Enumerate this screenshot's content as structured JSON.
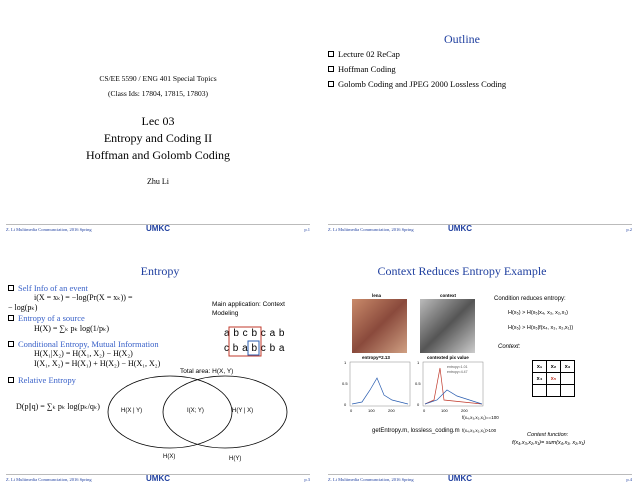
{
  "slides": [
    {
      "course": "CS/EE 5590 / ENG 401 Special Topics",
      "class_ids": "(Class Ids: 17804, 17815, 17803)",
      "lecture": "Lec 03",
      "title_line1": "Entropy and Coding II",
      "title_line2": "Hoffman and Golomb Coding",
      "author": "Zhu Li",
      "footer": {
        "text": "Z. Li Multimedia Communciation, 2016 Spring",
        "logo": "UMKC",
        "page": "p.1"
      }
    },
    {
      "title": "Outline",
      "bullets": [
        "Lecture 02 ReCap",
        "Hoffman Coding",
        "Golomb Coding and JPEG 2000 Lossless Coding"
      ],
      "footer": {
        "text": "Z. Li Multimedia Communciation, 2016 Spring",
        "logo": "UMKC",
        "page": "p.2"
      }
    },
    {
      "title": "Entropy",
      "bullets": [
        "Self Info of an event",
        "Entropy of a source",
        "Conditional Entropy, Mutual Information",
        "Relative Entropy"
      ],
      "formulas": [
        "i(X = xₖ) = −log(Pr(X = xₖ)) =",
        "− log(pₖ)",
        "H(X) = ∑ₖ pₖ log(1/pₖ)",
        "H(X₁|X₂) = H(X₁, X₂) − H(X₂)",
        "I(X₁, X₂) = H(X₁) + H(X₂) − H(X₁, X₂)",
        "D(p||q) = ∑ₖ pₖ log(pₖ/qₖ)"
      ],
      "note_line1": "Main application: Context",
      "note_line2": "Modeling",
      "sequence1": "a b c b c a b",
      "sequence2": "c b a b c b a",
      "venn": {
        "total": "Total area: H(X, Y)",
        "hx_given_y": "H(X | Y)",
        "mutual": "I(X; Y)",
        "hy_given_x": "H(Y | X)",
        "hx": "H(X)",
        "hy": "H(Y)"
      },
      "footer": {
        "text": "Z. Li Multimedia Communciation, 2016 Spring",
        "logo": "UMKC",
        "page": "p.3"
      }
    },
    {
      "title": "Context Reduces Entropy Example",
      "image_labels": [
        "lena",
        "context"
      ],
      "plot_titles": [
        "entropy=2.13",
        "contexted pix value"
      ],
      "legend": [
        "entropy=1.01",
        "entropy=4.47"
      ],
      "yticks": [
        "1",
        "0.5",
        "0"
      ],
      "xticks": [
        "0",
        "100",
        "200"
      ],
      "context_eq": "f(x₄,x₃,x₂,x₁)==100",
      "context_gt": "f(x₄,x₃,x₂,x₁)>100",
      "files": "getEntropy.m, lossless_coding.m",
      "condition_title": "Condition reduces entropy:",
      "inequalities": [
        "H(x₅) > H(x₅|x₄, x₃, x₂,x₁)",
        "H(x₅) > H(x₅|f(x₄, x₃, x₂,x₁))"
      ],
      "context_label": "Context:",
      "context_table": [
        [
          "x₁",
          "x₂",
          "x₃"
        ],
        [
          "x₄",
          "x₅"
        ]
      ],
      "function_label": "Context function:",
      "function_def": "f(x₄,x₃,x₂,x₁)= sum(x₄,x₃, x₂,x₁)",
      "footer": {
        "text": "Z. Li Multimedia Communciation, 2016 Spring",
        "logo": "UMKC",
        "page": "p.4"
      }
    }
  ]
}
